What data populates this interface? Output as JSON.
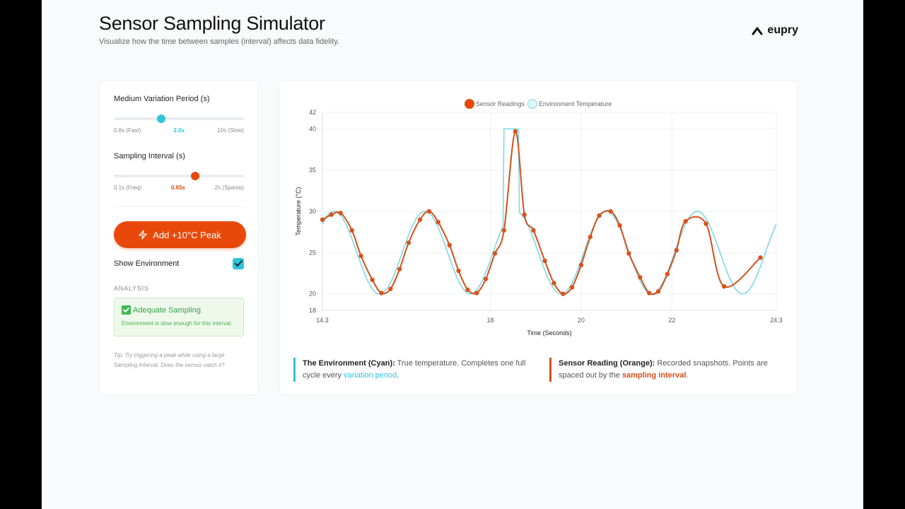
{
  "header": {
    "title": "Sensor Sampling Simulator",
    "subtitle": "Visualize how the time between samples (interval) affects data fidelity."
  },
  "brand": {
    "name": "eupry",
    "icon": "eupry-logo-icon"
  },
  "controls": {
    "variation": {
      "label": "Medium Variation Period (s)",
      "min_label": "0.8s (Fast)",
      "value_label": "2.0s",
      "max_label": "10s (Slow)",
      "min": 0.8,
      "max": 10,
      "value": 2.0,
      "color": "#2ec4da"
    },
    "interval": {
      "label": "Sampling Interval (s)",
      "min_label": "0.1s (Freq)",
      "value_label": "0.65s",
      "max_label": "2s (Sparse)",
      "min": 0.1,
      "max": 2,
      "value": 0.65,
      "color": "#e8490a"
    },
    "peak_button": {
      "label": "Add +10°C Peak",
      "icon": "lightning-icon"
    },
    "show_environment": {
      "label": "Show Environment",
      "checked": true
    },
    "analysis": {
      "title": "ANALYSIS",
      "status": "Adequate Sampling",
      "message": "Environment is slow enough for this interval."
    },
    "tip": "Tip: Try triggering a peak while using a large Sampling Interval. Does the sensor catch it?"
  },
  "chart_data": {
    "type": "line",
    "title": "",
    "xlabel": "Time (Seconds)",
    "ylabel": "Temperature (°C)",
    "xlim": [
      14.3,
      24.3
    ],
    "ylim": [
      18,
      42
    ],
    "x_ticks": [
      "14.3",
      "18",
      "20",
      "22",
      "24.3"
    ],
    "x_tick_values": [
      14.3,
      18,
      20,
      22,
      24.3
    ],
    "y_ticks": [
      18,
      20,
      25,
      30,
      35,
      40,
      42
    ],
    "grid": true,
    "legend": "top-center",
    "series": [
      {
        "name": "Sensor Readings",
        "color": "#d4501a",
        "kind": "sampled",
        "x": [
          14.3,
          14.5,
          14.7,
          14.95,
          15.15,
          15.4,
          15.6,
          15.8,
          16.0,
          16.2,
          16.45,
          16.65,
          16.85,
          17.1,
          17.3,
          17.5,
          17.7,
          17.9,
          18.1,
          18.3,
          18.55,
          18.75,
          18.95,
          19.2,
          19.4,
          19.6,
          19.8,
          20.0,
          20.2,
          20.4,
          20.65,
          20.85,
          21.05,
          21.3,
          21.5,
          21.7,
          21.9,
          22.1,
          22.3,
          22.75,
          23.15,
          23.95
        ],
        "y": [
          29.0,
          29.6,
          29.8,
          27.7,
          24.6,
          21.7,
          20.1,
          20.6,
          23.0,
          26.2,
          29.0,
          30.0,
          28.7,
          25.9,
          22.8,
          20.5,
          20.1,
          21.8,
          24.9,
          27.7,
          39.7,
          29.6,
          27.7,
          24.0,
          21.3,
          20.0,
          20.8,
          23.5,
          26.9,
          29.5,
          30.0,
          28.3,
          24.9,
          22.0,
          20.1,
          20.3,
          22.4,
          25.3,
          28.8,
          28.5,
          20.9,
          24.4
        ]
      },
      {
        "name": "Environment Temperature",
        "color": "#7fd8e6",
        "kind": "continuous"
      }
    ]
  },
  "notes": {
    "env": {
      "title": "The Environment (Cyan):",
      "text": " True temperature. Completes one full cycle every ",
      "link": "variation period",
      "end": ".",
      "color": "#2ec4da"
    },
    "sensor": {
      "title": "Sensor Reading (Orange):",
      "text": " Recorded snapshots. Points are spaced out by the ",
      "link": "sampling interval",
      "end": ".",
      "color": "#d4501a"
    }
  }
}
